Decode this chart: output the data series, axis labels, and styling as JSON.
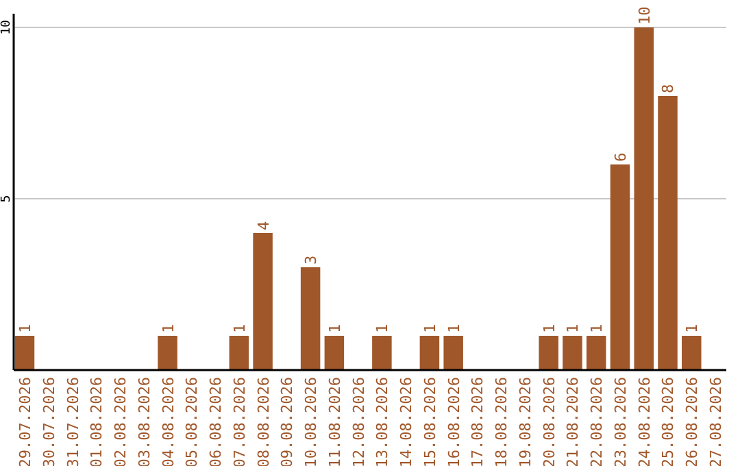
{
  "chart_data": {
    "type": "bar",
    "categories": [
      "29.07.2026",
      "30.07.2026",
      "31.07.2026",
      "01.08.2026",
      "02.08.2026",
      "03.08.2026",
      "04.08.2026",
      "05.08.2026",
      "06.08.2026",
      "07.08.2026",
      "08.08.2026",
      "09.08.2026",
      "10.08.2026",
      "11.08.2026",
      "12.08.2026",
      "13.08.2026",
      "14.08.2026",
      "15.08.2026",
      "16.08.2026",
      "17.08.2026",
      "18.08.2026",
      "19.08.2026",
      "20.08.2026",
      "21.08.2026",
      "22.08.2026",
      "23.08.2026",
      "24.08.2026",
      "25.08.2026",
      "26.08.2026",
      "27.08.2026"
    ],
    "values": [
      1,
      0,
      0,
      0,
      0,
      0,
      1,
      0,
      0,
      1,
      4,
      0,
      3,
      1,
      0,
      1,
      0,
      1,
      1,
      0,
      0,
      0,
      1,
      1,
      1,
      6,
      10,
      8,
      1,
      0
    ],
    "value_labels": [
      "1",
      null,
      null,
      null,
      null,
      null,
      "1",
      null,
      null,
      "1",
      "4",
      null,
      "3",
      "1",
      null,
      "1",
      null,
      "1",
      "1",
      null,
      null,
      null,
      "1",
      "1",
      "1",
      "6",
      "10",
      "8",
      "1",
      null
    ],
    "color": "#a0572a",
    "ylim": [
      0,
      10.4
    ],
    "yticks": [
      5,
      10
    ],
    "grid": "y"
  }
}
